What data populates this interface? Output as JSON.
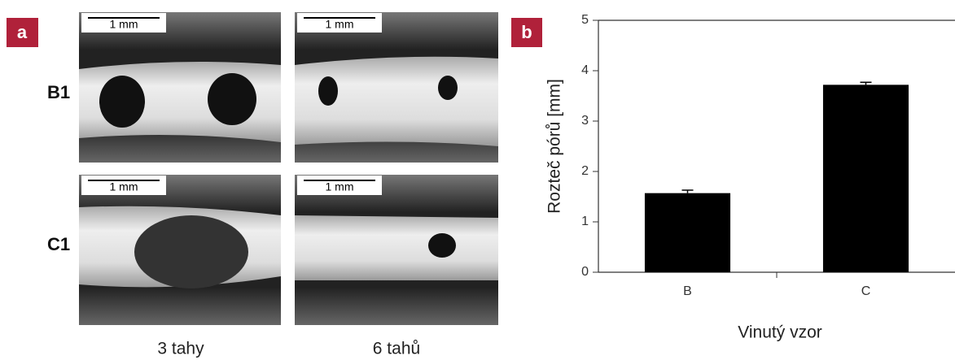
{
  "panel_a": {
    "label": "a",
    "scale_bar": "1 mm",
    "rows": [
      "B1",
      "C1"
    ],
    "columns": [
      "3 tahy",
      "6 tahů"
    ]
  },
  "chart_data": {
    "type": "bar",
    "panel_label": "b",
    "y_label": "Rozteč pórů [mm]",
    "x_label": "Vinutý vzor",
    "categories": [
      "B",
      "C"
    ],
    "values": [
      1.57,
      3.72
    ],
    "errors": [
      0.06,
      0.05
    ],
    "color": "#000000",
    "ylim": [
      0,
      5
    ],
    "yticks": [
      0,
      1,
      2,
      3,
      4,
      5
    ],
    "grid": false
  }
}
